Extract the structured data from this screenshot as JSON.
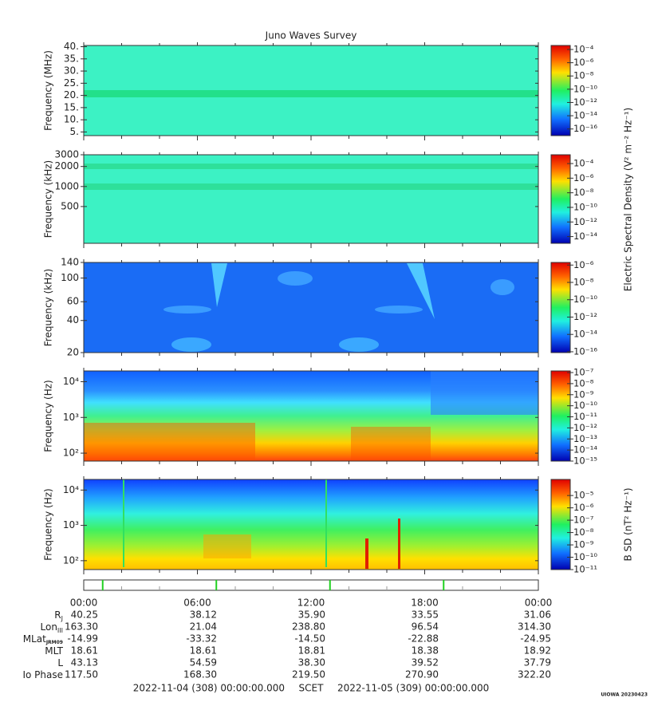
{
  "title": "Juno Waves Survey",
  "chart_data": [
    {
      "type": "spectrogram",
      "ylabel": "Frequency (MHz)",
      "yscale": "linear",
      "ylim": [
        3.5,
        40.5
      ],
      "yticks": [
        {
          "value": 5,
          "label": "5."
        },
        {
          "value": 10,
          "label": "10."
        },
        {
          "value": 15,
          "label": "15."
        },
        {
          "value": 20,
          "label": "20."
        },
        {
          "value": 25,
          "label": "25."
        },
        {
          "value": 30,
          "label": "30."
        },
        {
          "value": 35,
          "label": "35."
        },
        {
          "value": 40,
          "label": "40."
        }
      ],
      "clim": [
        1e-17,
        0.0004
      ],
      "cticks": [
        {
          "value": 0.0001,
          "label": "10⁻⁴"
        },
        {
          "value": 1e-06,
          "label": "10⁻⁶"
        },
        {
          "value": 1e-08,
          "label": "10⁻⁸"
        },
        {
          "value": 1e-10,
          "label": "10⁻¹⁰"
        },
        {
          "value": 1e-12,
          "label": "10⁻¹²"
        },
        {
          "value": 1e-14,
          "label": "10⁻¹⁴"
        },
        {
          "value": 1e-16,
          "label": "10⁻¹⁶"
        }
      ]
    },
    {
      "type": "spectrogram",
      "ylabel": "Frequency (kHz)",
      "yscale": "log",
      "ylim": [
        140,
        3000
      ],
      "yticks": [
        500,
        1000,
        2000,
        3000
      ],
      "clim": [
        1.2e-15,
        0.0016
      ],
      "cticks": [
        {
          "value": 0.0001,
          "label": "10⁻⁴"
        },
        {
          "value": 1e-06,
          "label": "10⁻⁶"
        },
        {
          "value": 1e-08,
          "label": "10⁻⁸"
        },
        {
          "value": 1e-10,
          "label": "10⁻¹⁰"
        },
        {
          "value": 1e-12,
          "label": "10⁻¹²"
        },
        {
          "value": 1e-14,
          "label": "10⁻¹⁴"
        }
      ],
      "colorbar_label": "Electric Spectral Density (V² m⁻² Hz⁻¹)"
    },
    {
      "type": "spectrogram",
      "ylabel": "Frequency (kHz)",
      "yscale": "log",
      "ylim": [
        20,
        140
      ],
      "yticks": [
        20,
        40,
        60,
        100,
        140
      ],
      "clim": [
        8e-17,
        2e-06
      ],
      "cticks": [
        {
          "value": 1e-06,
          "label": "10⁻⁶"
        },
        {
          "value": 1e-08,
          "label": "10⁻⁸"
        },
        {
          "value": 1e-10,
          "label": "10⁻¹⁰"
        },
        {
          "value": 1e-12,
          "label": "10⁻¹²"
        },
        {
          "value": 1e-14,
          "label": "10⁻¹⁴"
        },
        {
          "value": 1e-16,
          "label": "10⁻¹⁶"
        }
      ]
    },
    {
      "type": "spectrogram",
      "ylabel": "Frequency (Hz)",
      "yscale": "log",
      "ylim": [
        60,
        20000
      ],
      "yticks": [
        {
          "value": 100,
          "label": "10²"
        },
        {
          "value": 1000,
          "label": "10³"
        },
        {
          "value": 10000,
          "label": "10⁴"
        }
      ],
      "clim": [
        1e-15,
        1.4e-07
      ],
      "cticks": [
        {
          "value": 1e-07,
          "label": "10⁻⁷"
        },
        {
          "value": 1e-08,
          "label": "10⁻⁸"
        },
        {
          "value": 1e-09,
          "label": "10⁻⁹"
        },
        {
          "value": 1e-10,
          "label": "10⁻¹⁰"
        },
        {
          "value": 1e-11,
          "label": "10⁻¹¹"
        },
        {
          "value": 1e-12,
          "label": "10⁻¹²"
        },
        {
          "value": 1e-13,
          "label": "10⁻¹³"
        },
        {
          "value": 1e-14,
          "label": "10⁻¹⁴"
        },
        {
          "value": 1e-15,
          "label": "10⁻¹⁵"
        }
      ]
    },
    {
      "type": "spectrogram",
      "ylabel": "Frequency (Hz)",
      "yscale": "log",
      "ylim": [
        56,
        20000
      ],
      "yticks": [
        {
          "value": 100,
          "label": "10²"
        },
        {
          "value": 1000,
          "label": "10³"
        },
        {
          "value": 10000,
          "label": "10⁴"
        }
      ],
      "clim": [
        1e-11,
        0.0002
      ],
      "cticks": [
        {
          "value": 1e-05,
          "label": "10⁻⁵"
        },
        {
          "value": 1e-06,
          "label": "10⁻⁶"
        },
        {
          "value": 1e-07,
          "label": "10⁻⁷"
        },
        {
          "value": 1e-08,
          "label": "10⁻⁸"
        },
        {
          "value": 1e-09,
          "label": "10⁻⁹"
        },
        {
          "value": 1e-10,
          "label": "10⁻¹⁰"
        },
        {
          "value": 1e-11,
          "label": "10⁻¹¹"
        }
      ],
      "colorbar_label": "B SD (nT² Hz⁻¹)"
    }
  ],
  "time_axis": {
    "xlim": [
      0,
      24
    ],
    "xticks": [
      {
        "value": 0,
        "label": "00:00"
      },
      {
        "value": 6,
        "label": "06:00"
      },
      {
        "value": 12,
        "label": "12:00"
      },
      {
        "value": 18,
        "label": "18:00"
      },
      {
        "value": 24,
        "label": "00:00"
      }
    ],
    "xminorticks": [
      2,
      4,
      8,
      10,
      14,
      16,
      20,
      22
    ],
    "event_marks": [
      1,
      7,
      13,
      19
    ]
  },
  "ephemeris": [
    {
      "label": "R",
      "sub": "J",
      "values": [
        "40.25",
        "38.12",
        "35.90",
        "33.55",
        "31.06"
      ]
    },
    {
      "label": "Lon",
      "sub": "III",
      "values": [
        "163.30",
        "21.04",
        "238.80",
        "96.54",
        "314.30"
      ]
    },
    {
      "label": "MLat",
      "sub": "JRM09",
      "values": [
        "-14.99",
        "-33.32",
        "-14.50",
        "-22.88",
        "-24.95"
      ]
    },
    {
      "label": "MLT",
      "values": [
        "18.61",
        "18.61",
        "18.81",
        "18.38",
        "18.92"
      ]
    },
    {
      "label": "L",
      "values": [
        "43.13",
        "54.59",
        "38.30",
        "39.52",
        "37.79"
      ]
    },
    {
      "label": "Io Phase",
      "values": [
        "117.50",
        "168.30",
        "219.50",
        "270.90",
        "322.20"
      ]
    }
  ],
  "footer": {
    "start": "2022-11-04 (308) 00:00:00.000",
    "frame": "SCET",
    "end": "2022-11-05 (309) 00:00:00.000"
  },
  "credit": "UIOWA 20230423"
}
